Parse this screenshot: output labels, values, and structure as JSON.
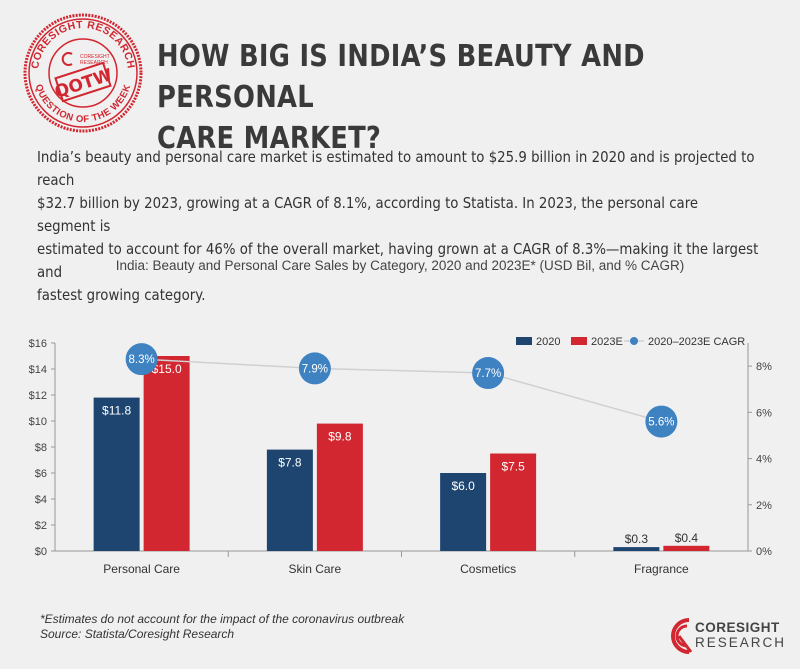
{
  "stamp": {
    "top_text": "CORESIGHT RESEARCH",
    "bottom_text": "QUESTION OF THE WEEK",
    "label": "QOTW",
    "logo_small_top": "CORESIGHT",
    "logo_small_bottom": "RESEARCH"
  },
  "headline": {
    "line1": "HOW BIG IS INDIA’S BEAUTY AND PERSONAL",
    "line2": "CARE MARKET?"
  },
  "intro": {
    "line1": "India’s beauty and personal care market is estimated to amount to $25.9 billion in 2020 and is projected to reach",
    "line2": "$32.7 billion by 2023, growing at a CAGR of 8.1%, according to Statista. In 2023, the personal care segment is",
    "line3": "estimated to account for 46% of the overall market, having grown at a CAGR of 8.3%—making it the largest and",
    "line4": "fastest growing category."
  },
  "footnote": {
    "line1": "*Estimates do not account for the impact of the coronavirus outbreak",
    "line2": "Source: Statista/Coresight Research"
  },
  "logo": {
    "line1": "CORESIGHT",
    "line2": "RESEARCH"
  },
  "colors": {
    "series_2020": "#1d4570",
    "series_2023": "#d22630",
    "cagr_point": "#3f82c2",
    "cagr_line": "#d0d0d0",
    "brand_red": "#d22630"
  },
  "chart_data": {
    "type": "bar",
    "title": "India: Beauty and Personal Care Sales by Category, 2020 and 2023E* (USD Bil, and % CAGR)",
    "categories": [
      "Personal Care",
      "Skin Care",
      "Cosmetics",
      "Fragrance"
    ],
    "series": [
      {
        "name": "2020",
        "values": [
          11.8,
          7.8,
          6.0,
          0.3
        ],
        "labels": [
          "$11.8",
          "$7.8",
          "$6.0",
          "$0.3"
        ]
      },
      {
        "name": "2023E",
        "values": [
          15.0,
          9.8,
          7.5,
          0.4
        ],
        "labels": [
          "$15.0",
          "$9.8",
          "$7.5",
          "$0.4"
        ]
      }
    ],
    "line_series": {
      "name": "2020–2023E CAGR",
      "values": [
        8.3,
        7.9,
        7.7,
        5.6
      ],
      "labels": [
        "8.3%",
        "7.9%",
        "7.7%",
        "5.6%"
      ]
    },
    "y_left": {
      "ylim": [
        0,
        16
      ],
      "ticks": [
        0,
        2,
        4,
        6,
        8,
        10,
        12,
        14,
        16
      ],
      "tick_labels": [
        "$0",
        "$2",
        "$4",
        "$6",
        "$8",
        "$10",
        "$12",
        "$14",
        "$16"
      ]
    },
    "y_right": {
      "ylim": [
        0,
        9
      ],
      "ticks": [
        0,
        2,
        4,
        6,
        8
      ],
      "tick_labels": [
        "0%",
        "2%",
        "4%",
        "6%",
        "8%"
      ]
    },
    "legend_position": "top-right",
    "grid": false
  }
}
